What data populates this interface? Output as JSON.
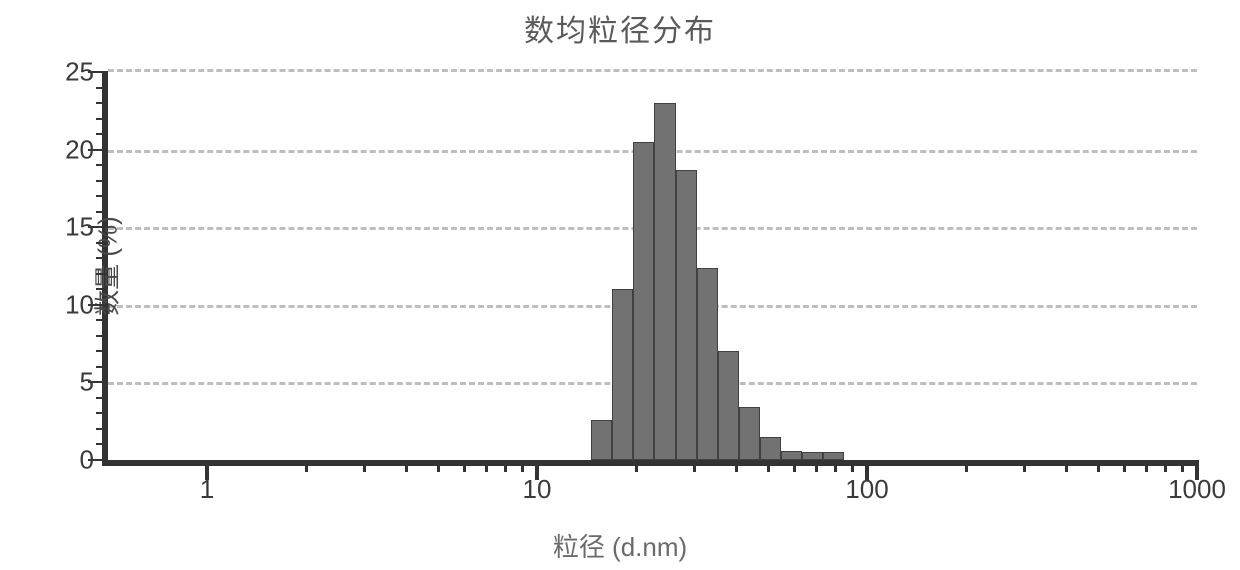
{
  "chart": {
    "type": "histogram",
    "title": "数均粒径分布",
    "yaxis": {
      "label": "数量 (%)",
      "min": 0,
      "max": 25,
      "tick_step": 5,
      "minor_step": 1,
      "ticks": [
        0,
        5,
        10,
        15,
        20,
        25
      ],
      "tick_labels": [
        "0",
        "5",
        "10",
        "15",
        "20",
        "25"
      ]
    },
    "xaxis": {
      "label": "粒径 (d.nm)",
      "scale": "log",
      "min_exp": -0.3,
      "max_exp": 3,
      "major_ticks": [
        1,
        10,
        100,
        1000
      ],
      "major_labels": [
        "1",
        "10",
        "100",
        "1000"
      ]
    },
    "grid": {
      "horizontal": true,
      "color": "#888888",
      "style": "dashed"
    },
    "bars": {
      "fill": "#6e6e6e",
      "border": "#3a3a3a",
      "bins": [
        {
          "low": 12.6,
          "high": 14.6,
          "value": 0.0
        },
        {
          "low": 14.6,
          "high": 16.9,
          "value": 2.6
        },
        {
          "low": 16.9,
          "high": 19.6,
          "value": 11.0
        },
        {
          "low": 19.6,
          "high": 22.7,
          "value": 20.5
        },
        {
          "low": 22.7,
          "high": 26.3,
          "value": 23.0
        },
        {
          "low": 26.3,
          "high": 30.5,
          "value": 18.7
        },
        {
          "low": 30.5,
          "high": 35.3,
          "value": 12.4
        },
        {
          "low": 35.3,
          "high": 40.9,
          "value": 7.0
        },
        {
          "low": 40.9,
          "high": 47.4,
          "value": 3.4
        },
        {
          "low": 47.4,
          "high": 54.9,
          "value": 1.5
        },
        {
          "low": 54.9,
          "high": 63.6,
          "value": 0.6
        },
        {
          "low": 63.6,
          "high": 73.7,
          "value": 0.5
        },
        {
          "low": 73.7,
          "high": 85.4,
          "value": 0.5
        }
      ]
    },
    "colors": {
      "axis": "#2b2b2b",
      "background": "#ffffff",
      "text": "#333333"
    },
    "fonts": {
      "title_size_pt": 22,
      "label_size_pt": 20,
      "tick_size_pt": 20
    }
  }
}
